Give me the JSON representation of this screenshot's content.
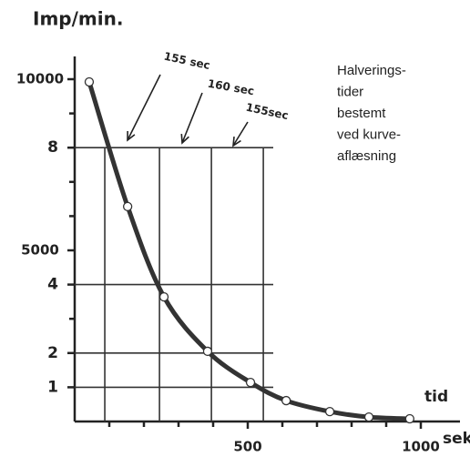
{
  "chart_data": {
    "type": "line",
    "y_label": "Imp/min.",
    "x_label_top": "tid",
    "x_label_bottom": "sek",
    "note_lines": [
      "Halverings-",
      "tider",
      "bestemt",
      "ved kurve-",
      "aflæsning"
    ],
    "annotations": [
      "155 sec",
      "160 sec",
      "155sec"
    ],
    "xlim": [
      0,
      1100
    ],
    "ylim": [
      0,
      10500
    ],
    "xticks": [
      500,
      1000
    ],
    "xminor_ticks": [
      100,
      200,
      300,
      400,
      600,
      700,
      800,
      900
    ],
    "yticks": [
      10000,
      {
        "value": 8000,
        "label": "8"
      },
      5000,
      {
        "value": 4000,
        "label": "4"
      },
      {
        "value": 2000,
        "label": "2"
      },
      {
        "value": 1000,
        "label": "1"
      }
    ],
    "yminor_ticks": [
      9000,
      7000,
      6000,
      3000
    ],
    "grid_y": [
      8000,
      4000,
      2000,
      1000
    ],
    "grid_x": [
      87,
      245,
      395,
      545
    ],
    "series": [
      {
        "color": "#333333",
        "x": [
          42,
          153,
          258,
          384,
          508,
          611,
          737,
          850,
          968
        ],
        "values": [
          9920,
          6280,
          3640,
          2050,
          1140,
          610,
          290,
          130,
          80
        ]
      }
    ]
  }
}
